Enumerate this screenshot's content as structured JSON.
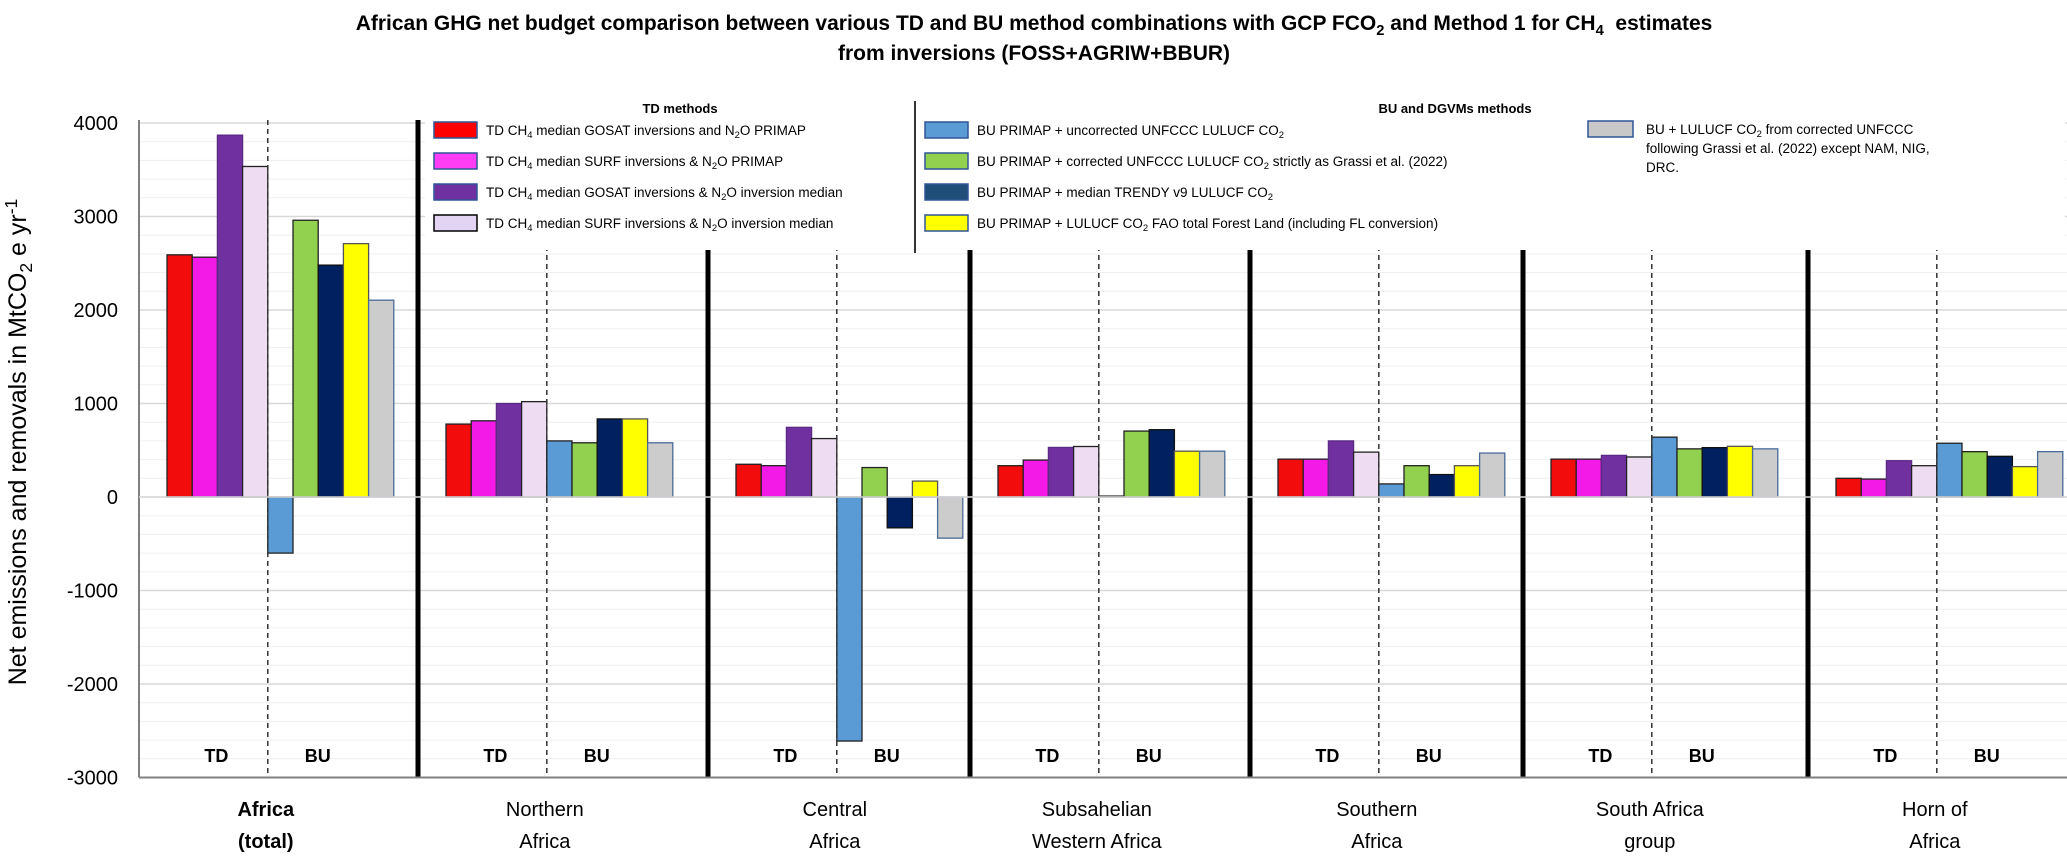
{
  "chart_data": {
    "type": "bar",
    "title_line1": "African GHG net budget comparison between various TD and BU method combinations with GCP FCO",
    "title_line1_sub": "2",
    "title_line1_b": " and Method 1 for CH",
    "title_line1_sub2": "4",
    "title_line1_c": "  estimates",
    "title_line2": "from inversions (FOSS+AGRIW+BBUR)",
    "ylabel_main": "Net emissions and removals in MtCO",
    "ylabel_sub": "2",
    "ylabel_tail": "e yr",
    "ylabel_sup": "-1",
    "ylim": [
      -3000,
      4000
    ],
    "yticks": [
      4000,
      3000,
      2000,
      1000,
      0,
      -1000,
      -2000,
      -3000
    ],
    "minor_grid_step": 200,
    "grid": true,
    "group_section_labels": {
      "td": "TD",
      "bu": "BU"
    },
    "categories": [
      {
        "name": "Africa (total)",
        "lines": [
          "Africa",
          "(total)"
        ],
        "bold": true
      },
      {
        "name": "Northern Africa",
        "lines": [
          "Northern",
          "Africa"
        ],
        "bold": false
      },
      {
        "name": "Central Africa",
        "lines": [
          "Central",
          "Africa"
        ],
        "bold": false
      },
      {
        "name": "Subsahelian Western Africa",
        "lines": [
          "Subsahelian",
          "Western Africa"
        ],
        "bold": false
      },
      {
        "name": "Southern Africa",
        "lines": [
          "Southern",
          "Africa"
        ],
        "bold": false
      },
      {
        "name": "South Africa group",
        "lines": [
          "South Africa",
          "group"
        ],
        "bold": false
      },
      {
        "name": "Horn of Africa",
        "lines": [
          "Horn of",
          "Africa"
        ],
        "bold": false
      }
    ],
    "series": [
      {
        "name": "TD CH4 median GOSAT inversions and N2O PRIMAP",
        "group": "TD",
        "color": "#f20c0c",
        "stroke": "#222222",
        "values": [
          2590,
          780,
          350,
          335,
          405,
          405,
          200
        ]
      },
      {
        "name": "TD CH4 median SURF inversions & N2O PRIMAP",
        "group": "TD",
        "color": "#f31ae8",
        "stroke": "#222222",
        "values": [
          2565,
          815,
          335,
          395,
          405,
          405,
          192
        ]
      },
      {
        "name": "TD CH4 median GOSAT inversions & N2O inversion median",
        "group": "TD",
        "color": "#7030a0",
        "stroke": "#5b2a85",
        "values": [
          3870,
          1000,
          745,
          530,
          600,
          445,
          388
        ]
      },
      {
        "name": "TD CH4 median SURF inversions & N2O inversion median",
        "group": "TD",
        "color": "#eedcf3",
        "stroke": "#222222",
        "values": [
          3535,
          1020,
          625,
          540,
          480,
          428,
          335
        ]
      },
      {
        "name": "BU PRIMAP + uncorrected UNFCCC LULUCF CO2",
        "group": "BU",
        "color": "#5b9bd5",
        "stroke": "#222222",
        "values": [
          -600,
          600,
          -2610,
          10,
          140,
          640,
          575
        ]
      },
      {
        "name": "BU PRIMAP + corrected UNFCCC LULUCF CO2 strictly as Grassi et al. (2022)",
        "group": "BU",
        "color": "#92d050",
        "stroke": "#222222",
        "values": [
          2960,
          580,
          315,
          705,
          335,
          515,
          485
        ]
      },
      {
        "name": "BU PRIMAP + median TRENDY v9 LULUCF CO2",
        "group": "BU",
        "color": "#002060",
        "stroke": "#111111",
        "values": [
          2480,
          835,
          -330,
          720,
          240,
          528,
          435
        ]
      },
      {
        "name": "BU PRIMAP + LULUCF CO2 FAO total Forest Land (including FL conversion)",
        "group": "BU",
        "color": "#ffff00",
        "stroke": "#555555",
        "values": [
          2710,
          835,
          170,
          490,
          335,
          542,
          325
        ]
      },
      {
        "name": "BU + LULUCF CO2 from corrected UNFCCC following Grassi et al. (2022) except NAM, NIG, DRC.",
        "group": "BU",
        "color": "#cccccc",
        "stroke": "#4a6a9a",
        "values": [
          2105,
          580,
          -440,
          490,
          470,
          515,
          485
        ]
      }
    ],
    "legend": {
      "placement": "top",
      "td_heading": "TD methods",
      "bu_heading": "BU and DGVMs methods",
      "td_items": [
        {
          "parts": [
            "TD CH",
            "4",
            " median GOSAT inversions and N",
            "2",
            "O PRIMAP"
          ],
          "color": "#ff0000",
          "border": "#2f5597"
        },
        {
          "parts": [
            "TD CH",
            "4",
            " median SURF inversions & N",
            "2",
            "O PRIMAP"
          ],
          "color": "#ff3df5",
          "border": "#2f5597"
        },
        {
          "parts": [
            "TD CH",
            "4",
            " median GOSAT inversions & N",
            "2",
            "O inversion median"
          ],
          "color": "#7030a0",
          "border": "#2f5597"
        },
        {
          "parts": [
            "TD CH",
            "4",
            " median SURF inversions & N",
            "2",
            "O inversion median"
          ],
          "color": "#e2d4f2",
          "border": "#000000"
        }
      ],
      "bu_items": [
        {
          "parts": [
            "BU PRIMAP + uncorrected UNFCCC LULUCF CO",
            "2",
            ""
          ],
          "color": "#5b9bd5",
          "border": "#2f5597"
        },
        {
          "parts": [
            "BU PRIMAP + corrected UNFCCC LULUCF CO",
            "2",
            " strictly as Grassi et al. (2022)"
          ],
          "color": "#92d050",
          "border": "#2f5597"
        },
        {
          "parts": [
            "BU PRIMAP + median TRENDY v9 LULUCF CO",
            "2",
            ""
          ],
          "color": "#1f4e79",
          "border": "#2f5597"
        },
        {
          "parts": [
            "BU PRIMAP + LULUCF CO",
            "2",
            " FAO total Forest Land (including FL conversion)"
          ],
          "color": "#ffff00",
          "border": "#2f5597"
        }
      ],
      "extra_item": {
        "lines": [
          [
            "BU + LULUCF CO",
            "2",
            " from corrected UNFCCC"
          ],
          [
            "following Grassi et al. (2022) except NAM, NIG,"
          ],
          [
            "DRC."
          ]
        ],
        "color": "#c8c8c8",
        "border": "#2f5597"
      }
    }
  }
}
